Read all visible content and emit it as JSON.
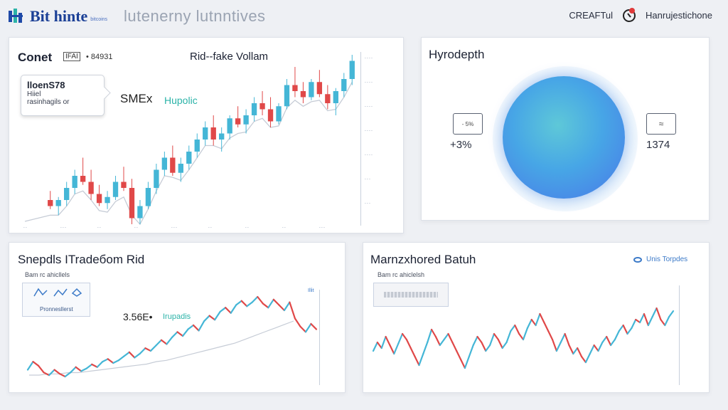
{
  "header": {
    "logo_text": "Bit hinte",
    "logo_sub": "bitcoins",
    "app_title": "lutenerny lutnntives",
    "menu_label": "CREAFTul",
    "user_label": "Hanrujestichone"
  },
  "panel_candles": {
    "title": "Conet",
    "badge": "IFAI",
    "badge_value": "• 84931",
    "chart_title": "Rid--fake Vollam",
    "tooltip": {
      "value": "lloenS78",
      "line1": "Hiiel",
      "line2": "rasinhagils or"
    },
    "label_smex": "SMEx",
    "label_hupolic": "Hupolic",
    "y_ticks": [
      "- - - -",
      "- - - -",
      "- - - -",
      "- - - -",
      "- - - -",
      "- - -",
      "- - -"
    ],
    "x_ticks": [
      "- -",
      "- - -",
      "- -",
      "- -",
      "- - -",
      "- -",
      "- -",
      "- -",
      "- - -"
    ]
  },
  "panel_depth": {
    "title": "Hyrodepth",
    "left_box": "- 5%",
    "left_value": "+3%",
    "right_box": "≈",
    "right_value": "1374"
  },
  "panel_snap": {
    "title": "Snepdls ITradeбom Rid",
    "subtitle": "Bam rc ahicllels",
    "inset_label": "Pronnesllerst",
    "value": "3.56E•",
    "value_tag": "Irupadis",
    "badge": "Illit"
  },
  "panel_market": {
    "title": "Marnzxhored Batuh",
    "subtitle": "Bam rc ahiclelsh",
    "legend": "Unis Torpdes"
  },
  "chart_data": [
    {
      "type": "candlestick",
      "title": "Rid--fake Vollam",
      "ohlc": [
        [
          52,
          55,
          49,
          50
        ],
        [
          50,
          53,
          47,
          52
        ],
        [
          52,
          58,
          50,
          56
        ],
        [
          56,
          62,
          54,
          60
        ],
        [
          60,
          66,
          57,
          58
        ],
        [
          58,
          62,
          52,
          54
        ],
        [
          54,
          57,
          50,
          51
        ],
        [
          51,
          55,
          49,
          53
        ],
        [
          53,
          60,
          52,
          58
        ],
        [
          58,
          63,
          55,
          56
        ],
        [
          56,
          59,
          44,
          46
        ],
        [
          46,
          52,
          44,
          50
        ],
        [
          50,
          58,
          49,
          56
        ],
        [
          56,
          64,
          54,
          62
        ],
        [
          62,
          68,
          60,
          66
        ],
        [
          66,
          70,
          60,
          61
        ],
        [
          61,
          66,
          58,
          64
        ],
        [
          64,
          70,
          62,
          68
        ],
        [
          68,
          74,
          66,
          72
        ],
        [
          72,
          78,
          70,
          76
        ],
        [
          76,
          80,
          70,
          72
        ],
        [
          72,
          76,
          68,
          74
        ],
        [
          74,
          80,
          72,
          79
        ],
        [
          79,
          83,
          76,
          77
        ],
        [
          77,
          82,
          74,
          80
        ],
        [
          80,
          86,
          78,
          84
        ],
        [
          84,
          88,
          80,
          82
        ],
        [
          82,
          86,
          76,
          78
        ],
        [
          78,
          84,
          77,
          83
        ],
        [
          83,
          92,
          82,
          90
        ],
        [
          90,
          96,
          86,
          88
        ],
        [
          88,
          91,
          84,
          86
        ],
        [
          86,
          92,
          85,
          91
        ],
        [
          91,
          95,
          86,
          87
        ],
        [
          87,
          90,
          82,
          84
        ],
        [
          84,
          89,
          80,
          88
        ],
        [
          88,
          94,
          86,
          92
        ],
        [
          92,
          100,
          90,
          98
        ]
      ]
    },
    {
      "type": "line",
      "title": "Snepdls ITradeбom Rid",
      "series": [
        {
          "values": [
            12,
            18,
            15,
            10,
            8,
            12,
            9,
            7,
            10,
            14,
            11,
            13,
            16,
            14,
            18,
            20,
            17,
            19,
            22,
            25,
            21,
            24,
            28,
            26,
            30,
            34,
            31,
            36,
            40,
            37,
            42,
            45,
            41,
            48,
            52,
            49,
            55,
            58,
            54,
            60,
            63,
            59,
            62,
            66,
            61,
            58,
            64,
            60,
            56,
            62,
            50,
            44,
            40,
            46,
            42
          ]
        },
        {
          "values": [
            6,
            6,
            7,
            7,
            8,
            8,
            9,
            10,
            11,
            12,
            13,
            14,
            15,
            17,
            18,
            20,
            22,
            24,
            26,
            28,
            30,
            32,
            35,
            38,
            41,
            44,
            47,
            50
          ]
        }
      ]
    },
    {
      "type": "line",
      "title": "Marnzxhored Batuh",
      "series": [
        {
          "values": [
            40,
            46,
            42,
            50,
            44,
            38,
            45,
            52,
            48,
            42,
            36,
            30,
            38,
            46,
            55,
            50,
            44,
            48,
            52,
            46,
            40,
            34,
            28,
            36,
            44,
            50,
            46,
            40,
            44,
            52,
            48,
            42,
            46,
            54,
            58,
            52,
            48,
            56,
            62,
            58,
            66,
            60,
            54,
            48,
            40,
            46,
            52,
            44,
            38,
            42,
            36,
            32,
            38,
            44,
            40,
            46,
            50,
            44,
            48,
            54,
            58,
            52,
            56,
            62,
            60,
            66,
            58,
            64,
            70,
            62,
            58,
            64,
            68
          ]
        }
      ]
    }
  ],
  "colors": {
    "up": "#44b6d6",
    "down": "#e04848",
    "accent": "#3c7ac8"
  }
}
